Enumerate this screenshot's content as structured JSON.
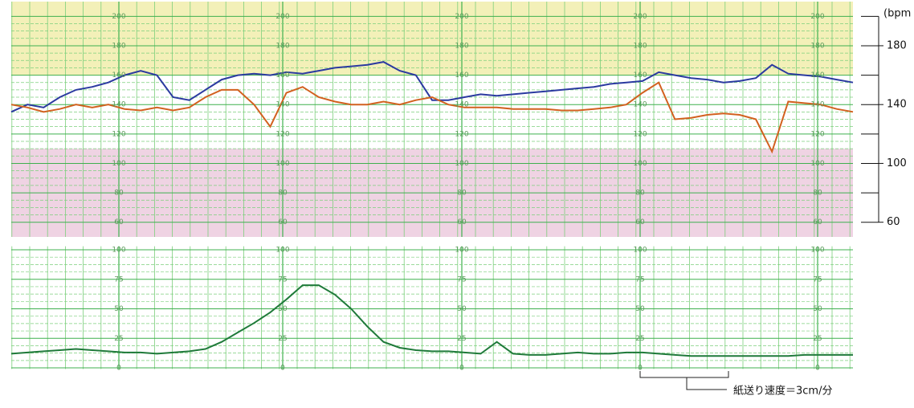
{
  "chart_data": [
    {
      "type": "line",
      "y_label": "(bpm",
      "ylim": [
        50,
        210
      ],
      "yticks": [
        60,
        100,
        140,
        180
      ],
      "inner_yticks": [
        60,
        80,
        100,
        120,
        140,
        160,
        180,
        200
      ],
      "bands": [
        {
          "from": 160,
          "to": 210,
          "color": "#f3f0b8"
        },
        {
          "from": 50,
          "to": 110,
          "color": "#efd3e3"
        }
      ],
      "grid": true,
      "series": [
        {
          "color": "#2b3aa0",
          "values": [
            135,
            140,
            138,
            145,
            150,
            152,
            155,
            160,
            163,
            160,
            145,
            143,
            150,
            157,
            160,
            161,
            160,
            162,
            161,
            163,
            165,
            166,
            167,
            169,
            163,
            160,
            143,
            143,
            145,
            147,
            146,
            147,
            148,
            149,
            150,
            151,
            152,
            154,
            155,
            156,
            162,
            160,
            158,
            157,
            155,
            156,
            158,
            167,
            161,
            160,
            159,
            157,
            155
          ]
        },
        {
          "color": "#d2611f",
          "values": [
            140,
            138,
            135,
            137,
            140,
            138,
            140,
            137,
            136,
            138,
            136,
            138,
            145,
            150,
            150,
            140,
            125,
            148,
            152,
            145,
            142,
            140,
            140,
            142,
            140,
            143,
            145,
            140,
            138,
            138,
            138,
            137,
            137,
            137,
            136,
            136,
            137,
            138,
            140,
            148,
            155,
            130,
            131,
            133,
            134,
            133,
            130,
            108,
            142,
            141,
            140,
            137,
            135
          ]
        }
      ]
    },
    {
      "type": "line",
      "ylim": [
        -1,
        103
      ],
      "inner_yticks": [
        0,
        25,
        50,
        75,
        100
      ],
      "grid": true,
      "annotation": "紙送り速度＝3cm/分",
      "series": [
        {
          "color": "#1f7a3a",
          "values": [
            12,
            13,
            14,
            15,
            16,
            15,
            14,
            13,
            13,
            12,
            13,
            14,
            16,
            22,
            30,
            38,
            47,
            58,
            70,
            70,
            62,
            50,
            35,
            22,
            17,
            15,
            14,
            14,
            13,
            12,
            22,
            12,
            11,
            11,
            12,
            13,
            12,
            12,
            13,
            13,
            12,
            11,
            10,
            10,
            10,
            10,
            10,
            10,
            10,
            11,
            11,
            11,
            11
          ]
        }
      ]
    }
  ]
}
